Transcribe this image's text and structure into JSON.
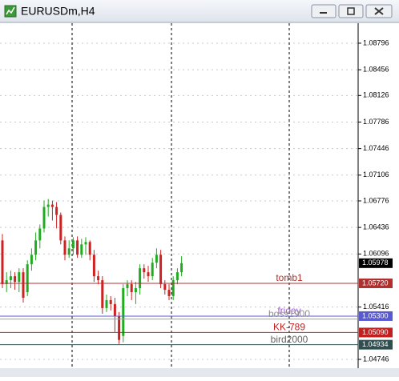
{
  "chart_data": {
    "type": "candlestick",
    "title": "EURUSDm,H4",
    "ylim": [
      1.04633,
      1.09052
    ],
    "yticks": [
      1.08796,
      1.08456,
      1.08126,
      1.07786,
      1.07446,
      1.07106,
      1.06776,
      1.06436,
      1.06096,
      1.05416,
      1.04746
    ],
    "grid": true,
    "up_color": "#22aa22",
    "down_color": "#cc2222",
    "open": [
      1.0627,
      1.05709,
      1.0576,
      1.05811,
      1.05739,
      1.05862,
      1.05607,
      1.05964,
      1.06086,
      1.0627,
      1.06423,
      1.06698,
      1.06729,
      1.06698,
      1.06596,
      1.0627,
      1.06086,
      1.06168,
      1.0627,
      1.06086,
      1.06219,
      1.0625,
      1.06086,
      1.05811,
      1.0576,
      1.05403,
      1.05505,
      1.05454,
      1.05301,
      1.05046,
      1.05658,
      1.05709,
      1.05607,
      1.05658,
      1.05913,
      1.05862,
      1.05811,
      1.05984,
      1.06086,
      1.05709,
      1.05637,
      1.05556,
      1.0576,
      1.05862
    ],
    "high": [
      1.06352,
      1.05862,
      1.05882,
      1.05862,
      1.05913,
      1.05913,
      1.06015,
      1.06168,
      1.06372,
      1.06474,
      1.0678,
      1.068,
      1.0678,
      1.0676,
      1.06627,
      1.06321,
      1.0627,
      1.06311,
      1.06321,
      1.0629,
      1.06311,
      1.0627,
      1.06148,
      1.05882,
      1.05811,
      1.05576,
      1.05556,
      1.05535,
      1.05352,
      1.05709,
      1.0576,
      1.0576,
      1.05739,
      1.05964,
      1.05964,
      1.05944,
      1.06046,
      1.06168,
      1.06148,
      1.0576,
      1.05709,
      1.05811,
      1.05913,
      1.06066
    ],
    "low": [
      1.05658,
      1.05607,
      1.05658,
      1.05637,
      1.05607,
      1.05474,
      1.05556,
      1.05882,
      1.06015,
      1.06168,
      1.06372,
      1.06576,
      1.06525,
      1.06423,
      1.06219,
      1.06015,
      1.06046,
      1.06086,
      1.06046,
      1.06046,
      1.06086,
      1.06015,
      1.05739,
      1.05709,
      1.05331,
      1.05352,
      1.05372,
      1.05097,
      1.04944,
      1.04964,
      1.05556,
      1.05505,
      1.05454,
      1.05576,
      1.0578,
      1.05739,
      1.0576,
      1.05913,
      1.05658,
      1.05576,
      1.05505,
      1.05505,
      1.05709,
      1.05811
    ],
    "close": [
      1.05709,
      1.0576,
      1.05811,
      1.05739,
      1.05862,
      1.05535,
      1.05964,
      1.06086,
      1.0627,
      1.06423,
      1.06698,
      1.06729,
      1.06698,
      1.06596,
      1.0627,
      1.06086,
      1.06168,
      1.0627,
      1.06086,
      1.06219,
      1.0625,
      1.06086,
      1.05811,
      1.0576,
      1.05403,
      1.05505,
      1.05454,
      1.05301,
      1.04995,
      1.05658,
      1.05709,
      1.05607,
      1.05658,
      1.05913,
      1.05862,
      1.05811,
      1.05984,
      1.06086,
      1.05709,
      1.05637,
      1.05556,
      1.0576,
      1.05862,
      1.05978
    ],
    "last_price_label": "1.05978",
    "lines": [
      {
        "name": "tomb1",
        "value": 1.0572,
        "value_label": "1.05720",
        "color": "#b03030",
        "text_color": "#b03030"
      },
      {
        "name": "friday",
        "value": 1.053,
        "value_label": "1.05300",
        "color": "#5a5ad0",
        "text_color": "#a060d0"
      },
      {
        "name": "boss1900",
        "value": 1.05262,
        "color": "#a0a0a0",
        "text_color": "#909090"
      },
      {
        "name": "KK-789",
        "value": 1.0509,
        "value_label": "1.05090",
        "color": "#c02020",
        "text_color": "#c02020"
      },
      {
        "name": "bird2000",
        "value": 1.04934,
        "value_label": "1.04934",
        "color": "#2f4f4f",
        "text_color": "#606060"
      }
    ]
  }
}
